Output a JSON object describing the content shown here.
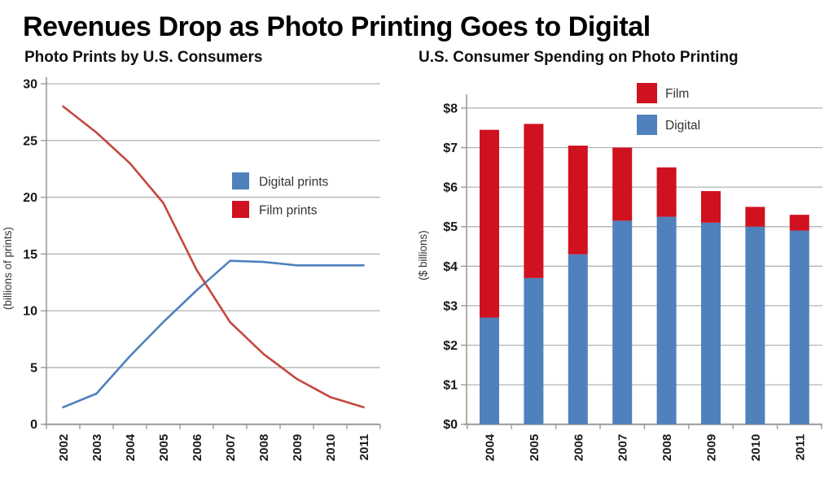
{
  "page_title": "Revenues Drop as Photo Printing Goes to Digital",
  "colors": {
    "digital_blue": "#4f81bd",
    "film_red": "#d01120",
    "film_line_red": "#c4483f",
    "grid": "#b3b3b3",
    "axis": "#999999",
    "tick_text": "#1a1a1a",
    "label_text": "#333333"
  },
  "chart_data": [
    {
      "type": "line",
      "title": "Photo Prints by U.S. Consumers",
      "ylabel": "(billions of prints)",
      "x": [
        2002,
        2003,
        2004,
        2005,
        2006,
        2007,
        2008,
        2009,
        2010,
        2011
      ],
      "series": [
        {
          "name": "Digital prints",
          "color": "#4f81bd",
          "swatch": "#4f81bd",
          "values": [
            1.5,
            2.7,
            6.0,
            9.0,
            11.8,
            14.4,
            14.3,
            14.0,
            14.0,
            14.0
          ]
        },
        {
          "name": "Film prints",
          "color": "#c4483f",
          "swatch": "#d01120",
          "values": [
            28.0,
            25.7,
            23.0,
            19.5,
            13.6,
            9.0,
            6.2,
            4.0,
            2.4,
            1.5
          ]
        }
      ],
      "ylim": [
        0,
        30
      ],
      "yticks": [
        0,
        5,
        10,
        15,
        20,
        25,
        30
      ],
      "ytick_labels": [
        "0",
        "5",
        "10",
        "15",
        "20",
        "25",
        "30"
      ],
      "grid": true,
      "legend_position": "inside-center-right"
    },
    {
      "type": "bar",
      "stacked": true,
      "title": "U.S. Consumer Spending on Photo Printing",
      "ylabel": "($ billions)",
      "categories": [
        2004,
        2005,
        2006,
        2007,
        2008,
        2009,
        2010,
        2011
      ],
      "series": [
        {
          "name": "Digital",
          "color": "#4f81bd",
          "values": [
            2.7,
            3.7,
            4.3,
            5.15,
            5.25,
            5.1,
            5.0,
            4.9
          ]
        },
        {
          "name": "Film",
          "color": "#d01120",
          "values": [
            4.75,
            3.9,
            2.75,
            1.85,
            1.25,
            0.8,
            0.5,
            0.4
          ]
        }
      ],
      "totals": [
        7.45,
        7.6,
        7.05,
        7.0,
        6.5,
        5.9,
        5.5,
        5.3
      ],
      "ylim": [
        0,
        8
      ],
      "yticks": [
        0,
        1,
        2,
        3,
        4,
        5,
        6,
        7,
        8
      ],
      "ytick_labels": [
        "$0",
        "$1",
        "$2",
        "$3",
        "$4",
        "$5",
        "$6",
        "$7",
        "$8"
      ],
      "grid": true,
      "legend_position": "inside-top-center",
      "legend_order": [
        "Film",
        "Digital"
      ]
    }
  ]
}
